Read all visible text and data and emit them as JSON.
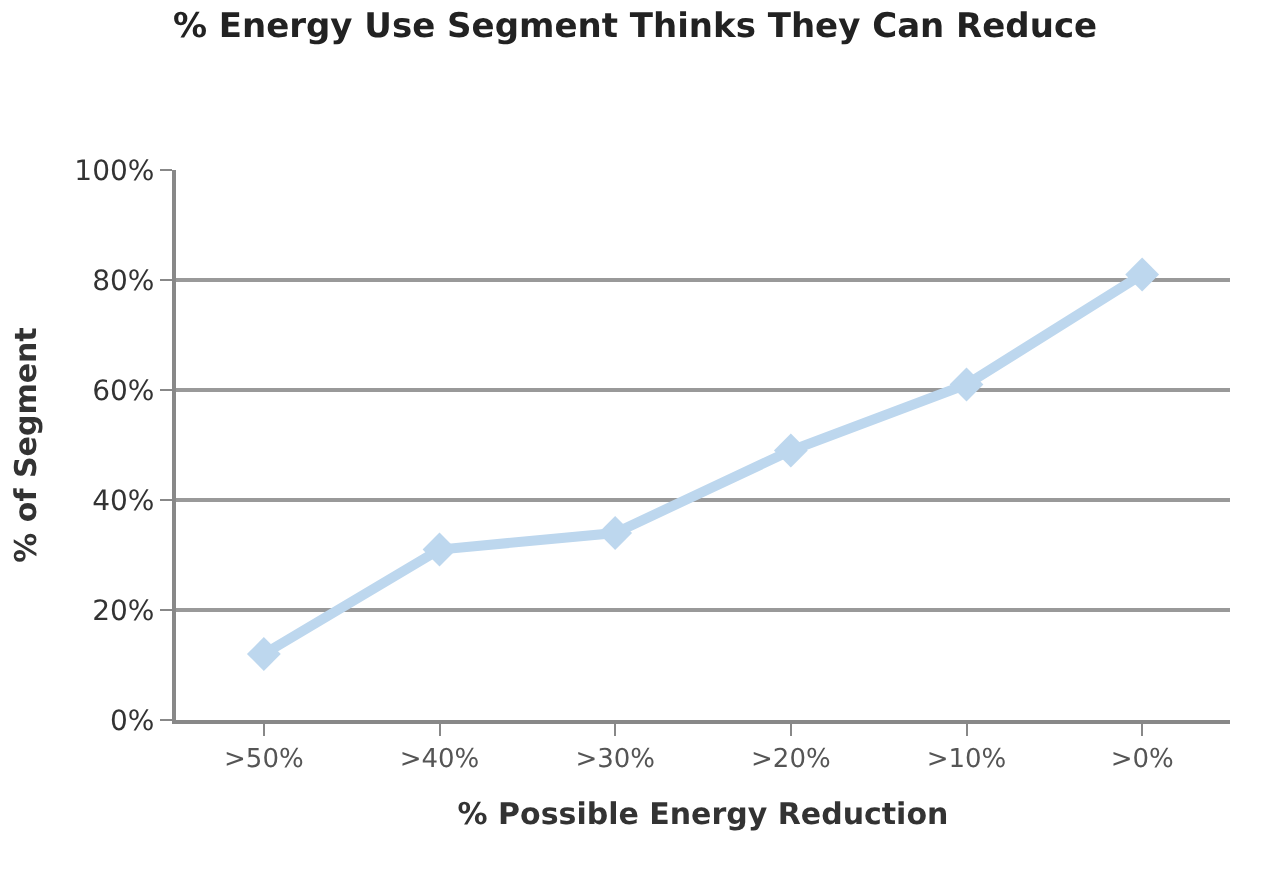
{
  "chart_data": {
    "type": "line",
    "title": "% Energy Use Segment Thinks They Can Reduce",
    "xlabel": "% Possible Energy Reduction",
    "ylabel": "% of Segment",
    "categories": [
      ">50%",
      ">40%",
      ">30%",
      ">20%",
      ">10%",
      ">0%"
    ],
    "series": [
      {
        "color": "#bdd7ee",
        "values": [
          12,
          31,
          34,
          49,
          61,
          81
        ]
      }
    ],
    "ylim": [
      0,
      100
    ],
    "yticks": [
      {
        "value": 0,
        "label": "0%"
      },
      {
        "value": 20,
        "label": "20%"
      },
      {
        "value": 40,
        "label": "40%"
      },
      {
        "value": 60,
        "label": "60%"
      },
      {
        "value": 80,
        "label": "80%"
      },
      {
        "value": 100,
        "label": "100%"
      }
    ],
    "grid": "y",
    "marker": "diamond",
    "line_style": "solid"
  }
}
